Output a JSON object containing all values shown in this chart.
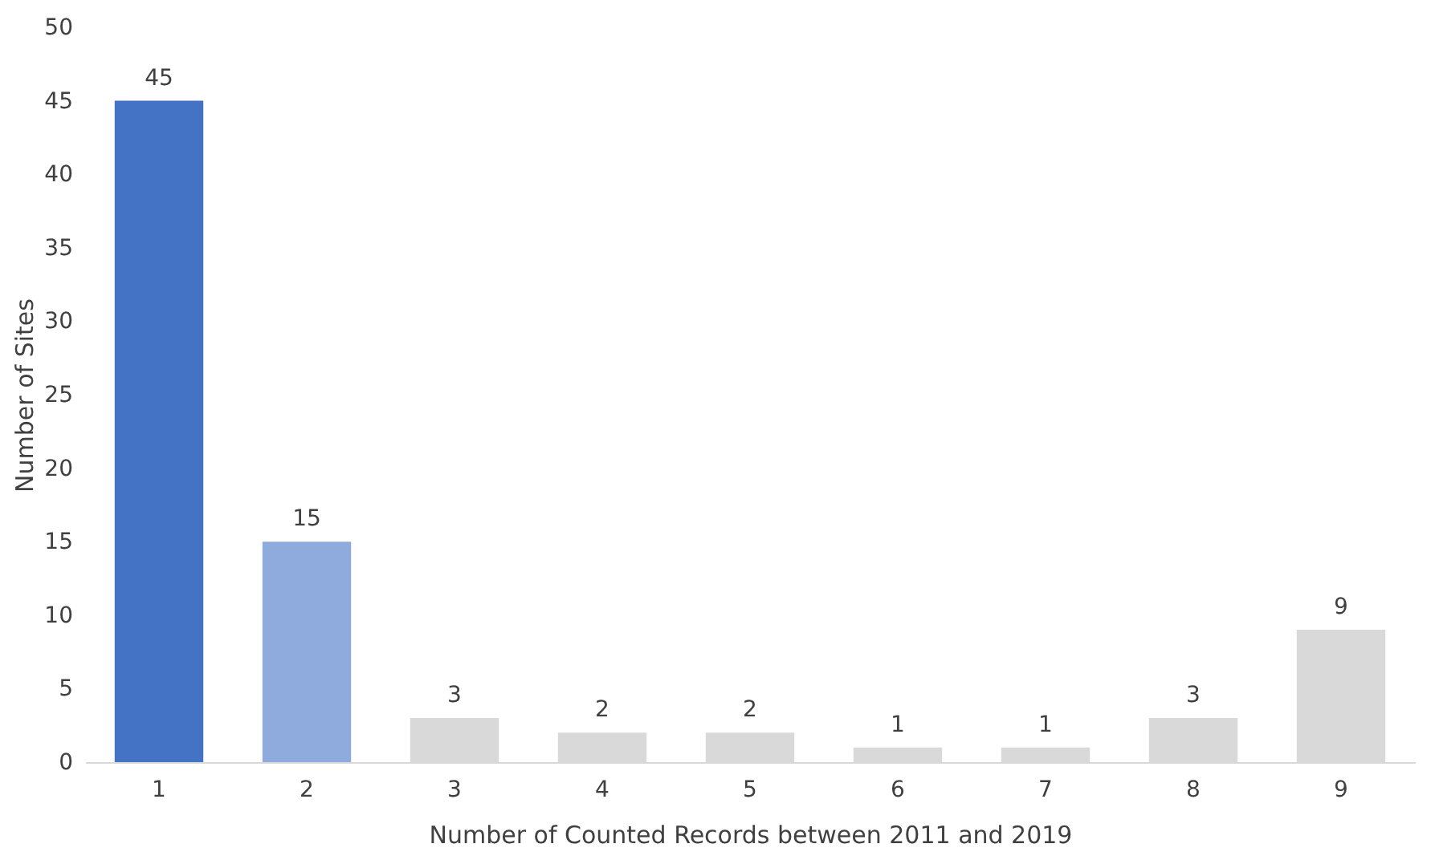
{
  "chart_data": {
    "type": "bar",
    "xlabel": "Number of  Counted Records between 2011 and 2019",
    "ylabel": "Number of Sites",
    "categories": [
      "1",
      "2",
      "3",
      "4",
      "5",
      "6",
      "7",
      "8",
      "9"
    ],
    "values": [
      45,
      15,
      3,
      2,
      2,
      1,
      1,
      3,
      9
    ],
    "colors": [
      "#4472c4",
      "#8faadc",
      "#d9d9d9",
      "#d9d9d9",
      "#d9d9d9",
      "#d9d9d9",
      "#d9d9d9",
      "#d9d9d9",
      "#d9d9d9"
    ],
    "ylim": [
      0,
      50
    ],
    "yticks": [
      0,
      5,
      10,
      15,
      20,
      25,
      30,
      35,
      40,
      45,
      50
    ],
    "grid": false,
    "data_labels": true
  }
}
